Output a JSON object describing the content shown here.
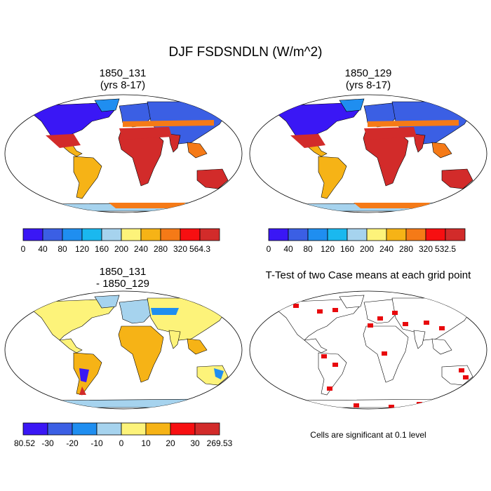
{
  "title": "DJF FSDSNDLN (W/m^2)",
  "panels": [
    {
      "id": "p1",
      "title_line1": "1850_131",
      "title_line2": "(yrs 8-17)"
    },
    {
      "id": "p2",
      "title_line1": "1850_129",
      "title_line2": "(yrs 8-17)"
    },
    {
      "id": "p3",
      "title_line1": "1850_131",
      "title_line2": "- 1850_129"
    },
    {
      "id": "p4",
      "title_line1": "T-Test of two Case means at each grid point",
      "title_line2": ""
    }
  ],
  "colorbars": [
    {
      "id": "cb1",
      "colors": [
        "#3a17f5",
        "#3b5fe4",
        "#1f8ef0",
        "#1ab8ef",
        "#a6d3ee",
        "#fdf37a",
        "#f6b316",
        "#f57a17",
        "#f70f11",
        "#d22b2a"
      ],
      "labels": [
        "0",
        "40",
        "80",
        "120",
        "160",
        "200",
        "240",
        "280",
        "320",
        "564.3"
      ]
    },
    {
      "id": "cb2",
      "colors": [
        "#3a17f5",
        "#3b5fe4",
        "#1f8ef0",
        "#1ab8ef",
        "#a6d3ee",
        "#fdf37a",
        "#f6b316",
        "#f57a17",
        "#f70f11",
        "#d22b2a"
      ],
      "labels": [
        "0",
        "40",
        "80",
        "120",
        "160",
        "200",
        "240",
        "280",
        "320",
        "532.5"
      ]
    },
    {
      "id": "cb3",
      "colors": [
        "#3a17f5",
        "#3b5fe4",
        "#1f8ef0",
        "#a6d3ee",
        "#fdf37a",
        "#f6b316",
        "#f70f11",
        "#d22b2a"
      ],
      "labels": [
        "-80.52",
        "-30",
        "-20",
        "-10",
        "0",
        "10",
        "20",
        "30",
        "269.53"
      ]
    }
  ],
  "significance_note": "Cells are significant at 0.1 level",
  "colors": {
    "land_hot": "#d22b2a",
    "land_cold": "#3a17f5",
    "significant": "#e8090d",
    "map_outline": "#000000"
  }
}
